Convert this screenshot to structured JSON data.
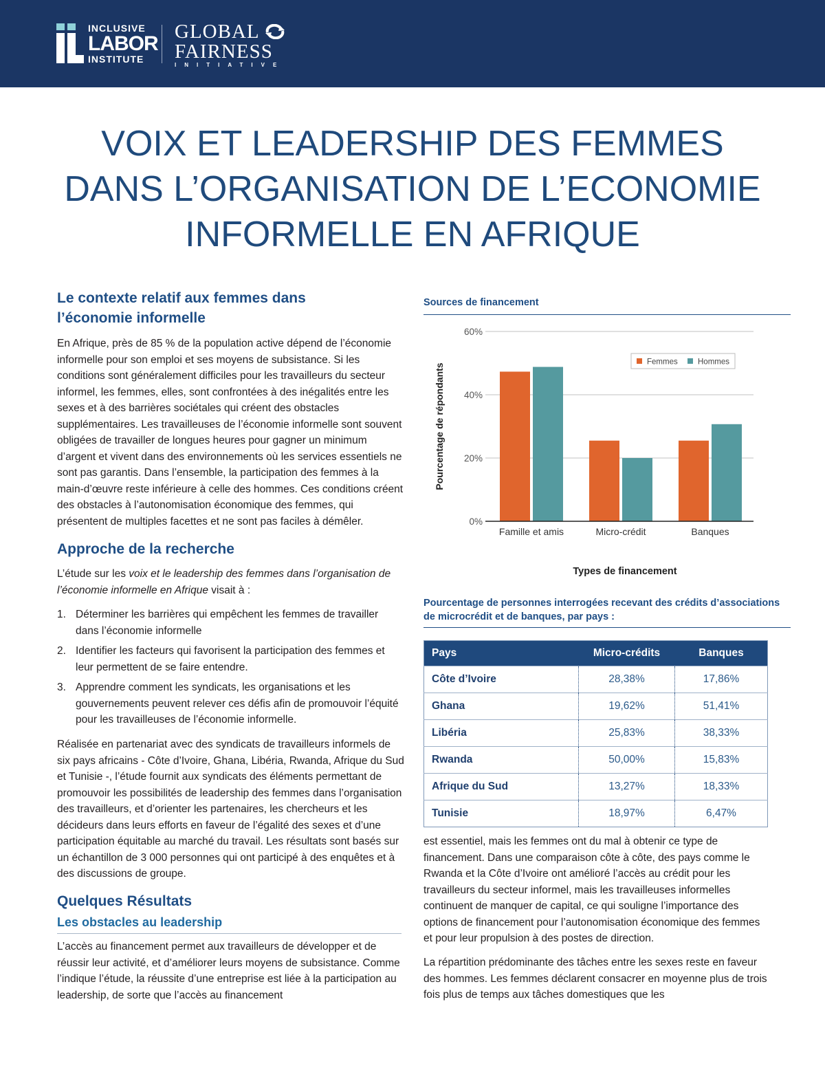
{
  "header": {
    "logo_ili": {
      "line1": "INCLUSIVE",
      "line2": "LABOR",
      "line3": "INSTITUTE"
    },
    "logo_gfi": {
      "line1": "GLOBAL",
      "line2": "FAIRNESS",
      "line3": "INITIATIVE"
    },
    "banner_color": "#1b3664"
  },
  "title": {
    "line1": "VOIX ET LEADERSHIP DES FEMMES",
    "line2": "DANS L’ORGANISATION DE L’ECONOMIE",
    "line3": "INFORMELLE EN AFRIQUE"
  },
  "left": {
    "h_context": "Le contexte relatif aux femmes dans l’économie informelle",
    "p_context": "En Afrique, près de 85 % de la population active dépend de l’économie informelle pour son emploi et ses moyens de subsistance. Si les conditions sont généralement difficiles pour les travailleurs du secteur informel, les femmes, elles, sont confrontées à des inégalités entre les sexes et à des barrières sociétales qui créent des obstacles supplémentaires. Les travailleuses de l’économie informelle sont souvent obligées de travailler de longues heures pour gagner un minimum d’argent et vivent dans des environnements où les services essentiels ne sont pas garantis. Dans l’ensemble, la participation des femmes à la main-d’œuvre reste inférieure à celle des hommes. Ces conditions créent des obstacles à l’autonomisation économique des femmes, qui présentent de multiples facettes et ne sont pas faciles à démêler.",
    "h_approach": "Approche de la recherche",
    "p_approach_pre": "L’étude sur les ",
    "p_approach_em": "voix et le leadership des femmes dans l’organisation de l’économie informelle en Afrique",
    "p_approach_post": " visait à :",
    "list": [
      {
        "num": "1.",
        "text": "Déterminer les barrières qui empêchent les femmes de travailler dans l’économie informelle"
      },
      {
        "num": "2.",
        "text": "Identifier les facteurs qui favorisent la participation des femmes et leur permettent de se faire entendre."
      },
      {
        "num": "3.",
        "text": "Apprendre comment les syndicats, les organisations et les gouvernements peuvent relever ces défis afin de promouvoir l’équité pour les travailleuses de l’économie informelle."
      }
    ],
    "p_partner": "Réalisée en partenariat avec des syndicats de travailleurs informels de six pays africains - Côte d’Ivoire, Ghana, Libéria, Rwanda, Afrique du Sud et Tunisie -, l’étude fournit aux syndicats des éléments permettant de promouvoir les possibilités de leadership des femmes dans l’organisation des travailleurs, et d’orienter les partenaires, les chercheurs et les décideurs dans leurs efforts en faveur de l’égalité des sexes et d’une participation équitable au marché du travail. Les résultats sont basés sur un échantillon de 3 000 personnes qui ont participé à des enquêtes et à des discussions de groupe.",
    "h_results": "Quelques Résultats",
    "h_obstacles": "Les obstacles au leadership",
    "p_obstacles": "L’accès au financement permet aux travailleurs de développer et de réussir leur activité, et d’améliorer leurs moyens de subsistance. Comme l’indique l’étude, la réussite d’une entreprise est liée à la participation au leadership, de sorte que l’accès au financement"
  },
  "right": {
    "p_cont": "est essentiel, mais les femmes ont du mal à obtenir ce type de financement. Dans une comparaison côte à côte, des pays comme le Rwanda et la Côte d’Ivoire ont amélioré l’accès au crédit pour les travailleurs du secteur informel, mais les travailleuses informelles continuent de manquer de capital, ce qui souligne l’importance des options de financement pour l’autonomisation économique des femmes et pour leur propulsion à des postes de direction.",
    "p_tasks": "La répartition prédominante des tâches entre les sexes reste en faveur des hommes. Les femmes déclarent consacrer en moyenne plus de trois fois plus de temps aux tâches domestiques que les"
  },
  "chart_data": {
    "type": "bar",
    "title": "Sources de financement",
    "xlabel": "Types de financement",
    "ylabel": "Pourcentage de répondants",
    "categories": [
      "Famille et amis",
      "Micro-crédit",
      "Banques"
    ],
    "series": [
      {
        "name": "Femmes",
        "values": [
          47.3,
          25.5,
          25.5
        ],
        "color": "#e0652d"
      },
      {
        "name": "Hommes",
        "values": [
          48.8,
          20.0,
          30.7
        ],
        "color": "#559a9f"
      }
    ],
    "ylim": [
      0,
      60
    ],
    "yticks": [
      "0%",
      "20%",
      "40%",
      "60%"
    ],
    "grid": true,
    "legend": "top-right"
  },
  "table": {
    "title": "Pourcentage de personnes interrogées recevant des crédits d’associations de microcrédit et de banques, par pays :",
    "headers": [
      "Pays",
      "Micro-crédits",
      "Banques"
    ],
    "rows": [
      [
        "Côte d’Ivoire",
        "28,38%",
        "17,86%"
      ],
      [
        "Ghana",
        "19,62%",
        "51,41%"
      ],
      [
        "Libéria",
        "25,83%",
        "38,33%"
      ],
      [
        "Rwanda",
        "50,00%",
        "15,83%"
      ],
      [
        "Afrique du Sud",
        "13,27%",
        "18,33%"
      ],
      [
        "Tunisie",
        "18,97%",
        "6,47%"
      ]
    ]
  }
}
